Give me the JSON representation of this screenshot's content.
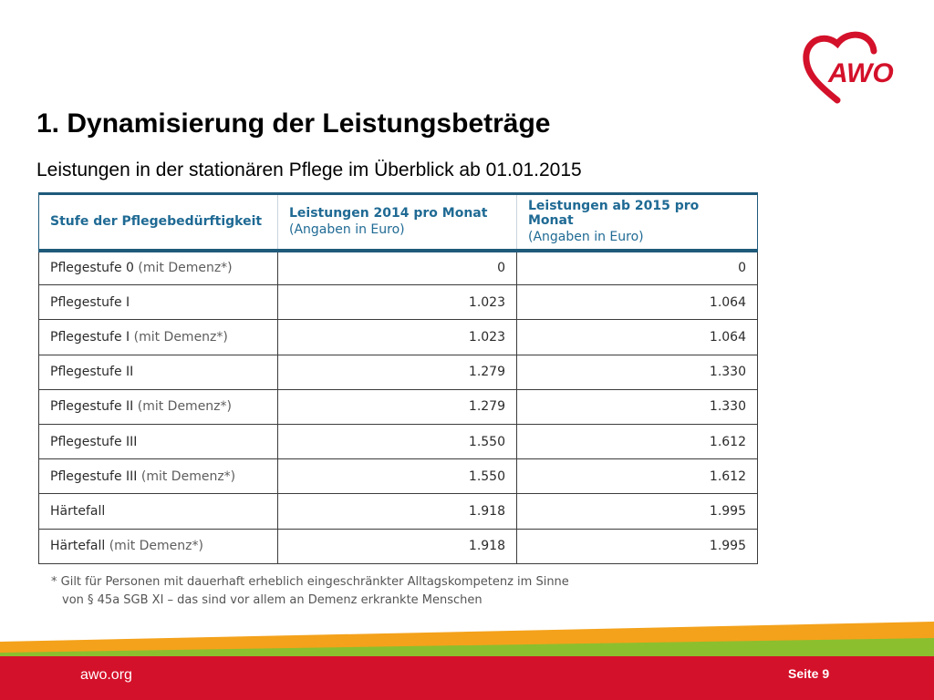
{
  "logo": {
    "text": "AWO",
    "heart_color": "#d4112a",
    "text_color": "#d4112a"
  },
  "slide": {
    "title": "1. Dynamisierung der Leistungsbeträge",
    "subtitle": "Leistungen in der stationären Pflege im Überblick ab 01.01.2015"
  },
  "table": {
    "headers": [
      {
        "main": "Stufe der Pflegebedürftigkeit",
        "sub": ""
      },
      {
        "main": "Leistungen 2014 pro Monat",
        "sub": "(Angaben in Euro)"
      },
      {
        "main": "Leistungen ab 2015 pro Monat",
        "sub": "(Angaben in Euro)"
      }
    ],
    "rows": [
      {
        "level": "Pflegestufe 0",
        "note": "(mit Demenz*)",
        "v2014": "0",
        "v2015": "0"
      },
      {
        "level": "Pflegestufe I",
        "note": "",
        "v2014": "1.023",
        "v2015": "1.064"
      },
      {
        "level": "Pflegestufe I",
        "note": "(mit Demenz*)",
        "v2014": "1.023",
        "v2015": "1.064"
      },
      {
        "level": "Pflegestufe II",
        "note": "",
        "v2014": "1.279",
        "v2015": "1.330"
      },
      {
        "level": "Pflegestufe II",
        "note": "(mit Demenz*)",
        "v2014": "1.279",
        "v2015": "1.330"
      },
      {
        "level": "Pflegestufe III",
        "note": "",
        "v2014": "1.550",
        "v2015": "1.612"
      },
      {
        "level": "Pflegestufe III",
        "note": "(mit Demenz*)",
        "v2014": "1.550",
        "v2015": "1.612"
      },
      {
        "level": "Härtefall",
        "note": "",
        "v2014": "1.918",
        "v2015": "1.995"
      },
      {
        "level": "Härtefall",
        "note": "(mit Demenz*)",
        "v2014": "1.918",
        "v2015": "1.995"
      }
    ]
  },
  "footnote": {
    "line1": "* Gilt für Personen mit dauerhaft erheblich eingeschränkter Alltagskompetenz im Sinne",
    "line2": "von § 45a SGB XI – das sind vor allem an Demenz erkrankte Menschen"
  },
  "footer": {
    "url": "awo.org",
    "page": "Seite 9",
    "stripe_colors": [
      "#f4a21b",
      "#8cbf2e",
      "#d4112a"
    ]
  }
}
